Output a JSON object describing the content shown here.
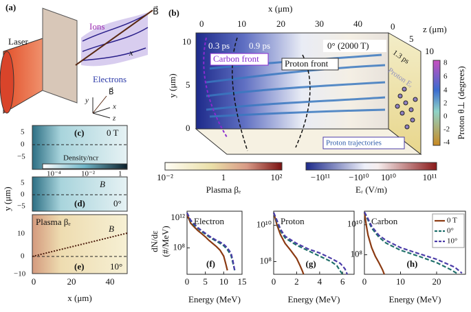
{
  "panel_a": {
    "label": "(a)",
    "laser": "Laser",
    "ions": "Ions",
    "electrons": "Electrons",
    "b_field": "B⃗",
    "x_axis": "x",
    "axes_triad": {
      "y": "y",
      "x": "x",
      "z": "z",
      "b": "B⃗"
    }
  },
  "panel_b": {
    "label": "(b)",
    "x_axis_label": "x (μm)",
    "x_ticks": [
      "0",
      "10",
      "20",
      "30",
      "40"
    ],
    "y_axis_label": "y (μm)",
    "y_ticks": [
      "10",
      "5",
      "0"
    ],
    "z_axis_label": "z (μm)",
    "z_ticks": [
      "0",
      "5",
      "10"
    ],
    "times": [
      "0.3 ps",
      "0.9 ps"
    ],
    "case": "0° (2000 T)",
    "side_time": "1.3 ps",
    "carbon_front": "Carbon front",
    "proton_front": "Proton front",
    "proton_trajectories": "Proton trajectories",
    "side_field": "Proton Eᵣ",
    "theta_colorbar": {
      "label": "Proton θ⊥ (degrees)",
      "ticks": [
        "8",
        "6",
        "4",
        "2",
        "0",
        "-2",
        "-4"
      ]
    },
    "beta_colorbar": {
      "label": "Plasma βₑ",
      "ticks": [
        "10⁻²",
        "1",
        "10²"
      ]
    },
    "er_colorbar": {
      "label": "Eᵣ (V/m)",
      "ticks": [
        "−10¹¹",
        "−10¹⁰",
        "10¹⁰",
        "10¹¹"
      ]
    }
  },
  "panels_cde": {
    "y_axis_label": "y (μm)",
    "x_axis_label": "x (μm)",
    "x_ticks": [
      "0",
      "20",
      "40"
    ],
    "c": {
      "label": "(c)",
      "case": "0 T",
      "y_ticks": [
        "5",
        "0",
        "−5"
      ],
      "colorbar": {
        "label": "Density/ncr",
        "ticks": [
          "10⁻⁴",
          "10⁻²",
          "1"
        ]
      }
    },
    "d": {
      "label": "(d)",
      "case": "0°",
      "field": "B",
      "y_ticks": [
        "5",
        "0",
        "−5"
      ]
    },
    "e": {
      "label": "(e)",
      "case": "10°",
      "title": "Plasma βₑ",
      "field": "B",
      "y_ticks": [
        "10",
        "0",
        "−10"
      ]
    }
  },
  "spectra_axes": {
    "y_axis_label": "dN/dε",
    "y_axis_unit": "(#/MeV)"
  },
  "chart_data": [
    {
      "type": "line",
      "panel": "(f)",
      "title": "Electron",
      "x_label": "Energy (MeV)",
      "xlim": [
        0,
        15
      ],
      "xticks": [
        0,
        5,
        10,
        15
      ],
      "yscale": "log",
      "ylim": [
        30000,
        8000000000000
      ],
      "yticks": [
        {
          "value": 100000000,
          "label": "10⁸"
        },
        {
          "value": 1000000000000,
          "label": "10¹²"
        }
      ],
      "series": [
        {
          "color": "#8b3a12",
          "dash": "solid",
          "x": [
            0,
            1,
            2,
            3,
            4,
            5,
            6,
            7,
            8,
            9,
            10,
            10.5,
            11
          ],
          "values": [
            3000000000000.0,
            200000000000.0,
            60000000000.0,
            20000000000.0,
            8000000000.0,
            3000000000.0,
            1000000000.0,
            400000000.0,
            150000000.0,
            50000000.0,
            8000000.0,
            1000000.0,
            100000.0
          ]
        },
        {
          "color": "#1f6f6a",
          "dash": "dashed",
          "x": [
            0,
            1,
            2,
            3,
            4,
            5,
            6,
            7,
            8,
            9,
            10,
            11,
            12,
            12.5,
            13
          ],
          "values": [
            5000000000000.0,
            400000000000.0,
            100000000000.0,
            40000000000.0,
            15000000000.0,
            7000000000.0,
            3000000000.0,
            1500000000.0,
            800000000.0,
            400000000.0,
            200000000.0,
            60000000.0,
            10000000.0,
            1000000.0,
            100000.0
          ]
        },
        {
          "color": "#4b3ca8",
          "dash": "dashed",
          "x": [
            0,
            1,
            2,
            3,
            4,
            5,
            6,
            7,
            8,
            9,
            10,
            11,
            12,
            12.5,
            13
          ],
          "values": [
            5000000000000.0,
            500000000000.0,
            150000000000.0,
            50000000000.0,
            20000000000.0,
            9000000000.0,
            4000000000.0,
            2000000000.0,
            1000000000.0,
            600000000.0,
            300000000.0,
            100000000.0,
            20000000.0,
            2000000.0,
            100000.0
          ]
        }
      ]
    },
    {
      "type": "line",
      "panel": "(g)",
      "title": "Proton",
      "x_label": "Energy (MeV)",
      "xlim": [
        0,
        7
      ],
      "xticks": [
        0,
        2,
        4,
        6
      ],
      "yscale": "log",
      "ylim": [
        20000000,
        60000000000
      ],
      "yticks": [
        {
          "value": 100000000,
          "label": "10⁸"
        },
        {
          "value": 10000000000,
          "label": "10¹⁰"
        }
      ],
      "series": [
        {
          "color": "#8b3a12",
          "dash": "solid",
          "x": [
            0,
            0.3,
            0.6,
            1,
            1.5,
            2,
            2.3,
            2.5,
            2.6
          ],
          "values": [
            50000000000.0,
            10000000000.0,
            3000000000.0,
            1000000000.0,
            400000000.0,
            150000000.0,
            60000000.0,
            30000000.0,
            20000000.0
          ]
        },
        {
          "color": "#1f6f6a",
          "dash": "dashed",
          "x": [
            0,
            0.3,
            0.6,
            1,
            2,
            3,
            4,
            5,
            5.5,
            5.8,
            6
          ],
          "values": [
            50000000000.0,
            15000000000.0,
            5000000000.0,
            2000000000.0,
            800000000.0,
            400000000.0,
            200000000.0,
            100000000.0,
            60000000.0,
            30000000.0,
            20000000.0
          ]
        },
        {
          "color": "#4b3ca8",
          "dash": "dashed",
          "x": [
            0,
            0.3,
            0.6,
            1,
            2,
            3,
            4,
            5,
            5.8,
            6.2,
            6.4
          ],
          "values": [
            50000000000.0,
            18000000000.0,
            6000000000.0,
            2500000000.0,
            1000000000.0,
            500000000.0,
            300000000.0,
            150000000.0,
            80000000.0,
            40000000.0,
            20000000.0
          ]
        }
      ]
    },
    {
      "type": "line",
      "panel": "(h)",
      "title": "Carbon",
      "x_label": "Energy (MeV)",
      "xlim": [
        0,
        28
      ],
      "xticks": [
        0,
        10,
        20
      ],
      "yscale": "log",
      "ylim": [
        5000000,
        80000000000
      ],
      "yticks": [
        {
          "value": 100000000,
          "label": "10⁸"
        },
        {
          "value": 10000000000,
          "label": "10¹⁰"
        }
      ],
      "legend": "upper right",
      "series": [
        {
          "name": "0 T",
          "color": "#8b3a12",
          "dash": "solid",
          "x": [
            0,
            0.5,
            1,
            2,
            3,
            4,
            5,
            5.5
          ],
          "values": [
            70000000000.0,
            10000000000.0,
            2000000000.0,
            300000000.0,
            80000000.0,
            30000000.0,
            10000000.0,
            5000000.0
          ]
        },
        {
          "name": "0°",
          "color": "#1f6f6a",
          "dash": "dashed",
          "x": [
            0,
            1,
            2,
            4,
            6,
            10,
            15,
            20,
            24,
            26
          ],
          "values": [
            70000000000.0,
            20000000000.0,
            6000000000.0,
            1500000000.0,
            600000000.0,
            200000000.0,
            80000000.0,
            30000000.0,
            10000000.0,
            5000000.0
          ]
        },
        {
          "name": "10°",
          "color": "#4b3ca8",
          "dash": "dashed",
          "x": [
            0,
            1,
            2,
            4,
            6,
            10,
            15,
            20,
            25,
            27
          ],
          "values": [
            70000000000.0,
            25000000000.0,
            8000000000.0,
            2000000000.0,
            900000000.0,
            300000000.0,
            120000000.0,
            50000000.0,
            15000000.0,
            6000000.0
          ]
        }
      ]
    }
  ]
}
